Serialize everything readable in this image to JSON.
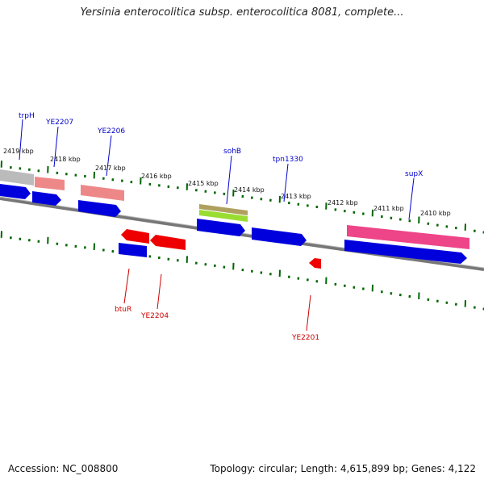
{
  "title": "Yersinia enterocolitica subsp. enterocolitica 8081, complete...",
  "footer": {
    "accession": "Accession: NC_008800",
    "info": "Topology: circular; Length: 4,615,899 bp; Genes: 4,122"
  },
  "ticks": [
    {
      "label": "2419 kbp"
    },
    {
      "label": "2418 kbp"
    },
    {
      "label": "2417 kbp"
    },
    {
      "label": "2416 kbp"
    },
    {
      "label": "2415 kbp"
    },
    {
      "label": "2414 kbp"
    },
    {
      "label": "2413 kbp"
    },
    {
      "label": "2412 kbp"
    },
    {
      "label": "2411 kbp"
    },
    {
      "label": "2410 kbp"
    }
  ],
  "features_top": [
    {
      "name": "trpH",
      "color": "#0000cc"
    },
    {
      "name": "YE2207",
      "color": "#0000cc"
    },
    {
      "name": "YE2206",
      "color": "#0000cc"
    },
    {
      "name": "sohB",
      "color": "#0000cc"
    },
    {
      "name": "tpn1330",
      "color": "#0000cc"
    },
    {
      "name": "supX",
      "color": "#0000cc"
    }
  ],
  "features_bottom": [
    {
      "name": "btuR",
      "color": "#cc0000"
    },
    {
      "name": "YE2204",
      "color": "#cc0000"
    },
    {
      "name": "YE2201",
      "color": "#cc0000"
    }
  ],
  "colors": {
    "backbone": "#888888",
    "tick": "#006600",
    "forward_gene": "#0000dd",
    "reverse_gene": "#ee0000",
    "rrna_pink": "#ee5588",
    "salmon": "#ee8888",
    "olive": "#b0a060",
    "lime": "#99dd33",
    "gray_block": "#bbbbbb"
  }
}
